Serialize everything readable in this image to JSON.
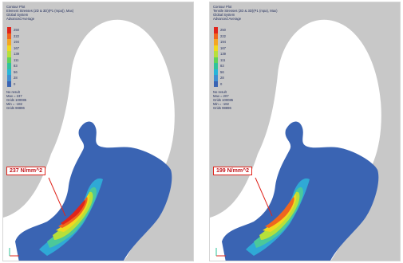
{
  "panels": [
    {
      "header": [
        "Contour Plot",
        "Element Stresses (2D & 3D)(P1 (mpa)), Max)",
        "Global System",
        "Advanced Average"
      ],
      "legend": [
        "250",
        "222",
        "194",
        "167",
        "139",
        "111",
        "83",
        "56",
        "28",
        "0"
      ],
      "stats": [
        "No result",
        "Max = 237",
        "Grids 100085",
        "Min = -182",
        "Grids 98896"
      ],
      "callout": "237  N/mm^2"
    },
    {
      "header": [
        "Contour Plot",
        "Tensile Stresses (2D & 3D)(P1 (mpa), Max)",
        "Global System",
        "Advanced Average"
      ],
      "legend": [
        "250",
        "222",
        "194",
        "167",
        "139",
        "111",
        "83",
        "56",
        "28",
        "0"
      ],
      "stats": [
        "No result",
        "Max = 207",
        "Grids 100085",
        "Min = -182",
        "Grids 98896"
      ],
      "callout": "199  N/mm^2"
    }
  ],
  "colors": {
    "scale": [
      "#e0241b",
      "#f0661e",
      "#f5a623",
      "#f1d91f",
      "#b7e03a",
      "#5fd35a",
      "#2fc39a",
      "#27b5d8",
      "#3f8fd2",
      "#3a64b3"
    ],
    "tooth": "#c8c8c8",
    "mesh": "#3a64b3",
    "callout": "#e0241b"
  }
}
